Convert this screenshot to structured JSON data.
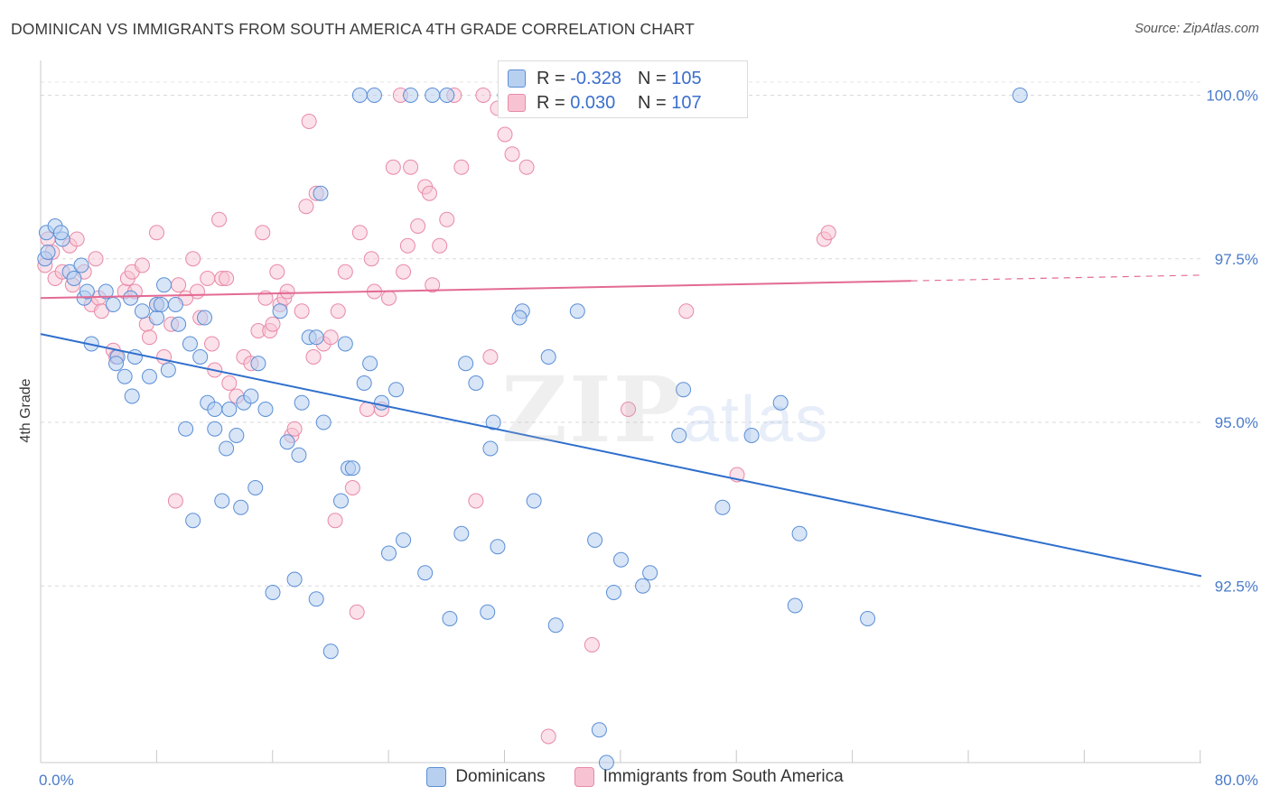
{
  "title": "DOMINICAN VS IMMIGRANTS FROM SOUTH AMERICA 4TH GRADE CORRELATION CHART",
  "source": "Source: ZipAtlas.com",
  "watermark": {
    "zip": "ZIP",
    "atlas": "atlas"
  },
  "legend": {
    "blue": {
      "r_label": "R = ",
      "r_value": "-0.328",
      "n_label": "N = ",
      "n_value": "105"
    },
    "pink": {
      "r_label": "R = ",
      "r_value": "0.030",
      "n_label": "N = ",
      "n_value": "107"
    }
  },
  "bottom_legend": [
    "Dominicans",
    "Immigrants from South America"
  ],
  "colors": {
    "blue": "#5b8fd6",
    "blue_fill": "#b8d0f0",
    "blue_line": "#2f6fcc",
    "pink": "#e88aa8",
    "pink_fill": "#f7c3d3",
    "pink_line": "#e36a93",
    "tick_text": "#4a7bc8"
  },
  "chart_data": {
    "type": "scatter",
    "xlabel": "",
    "ylabel": "4th Grade",
    "xlim": [
      0,
      80
    ],
    "ylim": [
      89.8,
      100.6
    ],
    "x_tick_labels": [
      {
        "value": 0,
        "label": "0.0%"
      },
      {
        "value": 80,
        "label": "80.0%"
      }
    ],
    "y_ticks": [
      {
        "value": 92.5,
        "label": "92.5%"
      },
      {
        "value": 95.0,
        "label": "95.0%"
      },
      {
        "value": 97.5,
        "label": "97.5%"
      },
      {
        "value": 100.0,
        "label": "100.0%"
      }
    ],
    "x_minor_ticks": [
      8,
      16,
      24,
      32,
      40,
      48,
      56,
      64,
      72,
      80
    ],
    "grid": true,
    "series": [
      {
        "name": "Dominicans",
        "color": "#5b8fd6",
        "trend": {
          "x": [
            0,
            80
          ],
          "y": [
            96.35,
            92.65
          ],
          "dashed_from": null
        },
        "points": [
          [
            0.3,
            97.5
          ],
          [
            0.4,
            97.9
          ],
          [
            0.5,
            97.6
          ],
          [
            1.0,
            98.0
          ],
          [
            1.5,
            97.8
          ],
          [
            1.4,
            97.9
          ],
          [
            2.0,
            97.3
          ],
          [
            2.3,
            97.2
          ],
          [
            3.0,
            96.9
          ],
          [
            2.8,
            97.4
          ],
          [
            3.5,
            96.2
          ],
          [
            3.2,
            97.0
          ],
          [
            4.5,
            97.0
          ],
          [
            5.0,
            96.8
          ],
          [
            5.3,
            96.0
          ],
          [
            5.2,
            95.9
          ],
          [
            5.8,
            95.7
          ],
          [
            6.2,
            96.9
          ],
          [
            6.5,
            96.0
          ],
          [
            6.3,
            95.4
          ],
          [
            7.0,
            96.7
          ],
          [
            7.5,
            95.7
          ],
          [
            8.0,
            96.6
          ],
          [
            8.0,
            96.8
          ],
          [
            8.3,
            96.8
          ],
          [
            8.5,
            97.1
          ],
          [
            8.8,
            95.8
          ],
          [
            9.3,
            96.8
          ],
          [
            9.5,
            96.5
          ],
          [
            10.0,
            94.9
          ],
          [
            10.3,
            96.2
          ],
          [
            10.5,
            93.5
          ],
          [
            11.0,
            96.0
          ],
          [
            11.3,
            96.6
          ],
          [
            11.5,
            95.3
          ],
          [
            12.0,
            95.2
          ],
          [
            12.0,
            94.9
          ],
          [
            12.5,
            93.8
          ],
          [
            12.8,
            94.6
          ],
          [
            13.0,
            95.2
          ],
          [
            13.5,
            94.8
          ],
          [
            13.8,
            93.7
          ],
          [
            14.0,
            95.3
          ],
          [
            14.5,
            95.4
          ],
          [
            14.8,
            94.0
          ],
          [
            15.0,
            95.9
          ],
          [
            15.5,
            95.2
          ],
          [
            16.0,
            92.4
          ],
          [
            16.5,
            96.7
          ],
          [
            17.0,
            94.7
          ],
          [
            17.5,
            92.6
          ],
          [
            17.8,
            94.5
          ],
          [
            18.0,
            95.3
          ],
          [
            18.5,
            96.3
          ],
          [
            19.0,
            96.3
          ],
          [
            19.0,
            92.3
          ],
          [
            19.3,
            98.5
          ],
          [
            19.5,
            95.0
          ],
          [
            20.0,
            91.5
          ],
          [
            20.7,
            93.8
          ],
          [
            21.0,
            96.2
          ],
          [
            21.2,
            94.3
          ],
          [
            21.5,
            94.3
          ],
          [
            22.0,
            100.0
          ],
          [
            22.3,
            95.6
          ],
          [
            22.7,
            95.9
          ],
          [
            23.0,
            100.0
          ],
          [
            23.5,
            95.3
          ],
          [
            24.0,
            93.0
          ],
          [
            24.5,
            95.5
          ],
          [
            25.0,
            93.2
          ],
          [
            25.5,
            100.0
          ],
          [
            26.5,
            92.7
          ],
          [
            27.0,
            100.0
          ],
          [
            28.0,
            100.0
          ],
          [
            28.2,
            92.0
          ],
          [
            29.0,
            93.3
          ],
          [
            29.3,
            95.9
          ],
          [
            30.0,
            95.6
          ],
          [
            30.8,
            92.1
          ],
          [
            31.0,
            94.6
          ],
          [
            31.2,
            95.0
          ],
          [
            31.5,
            93.1
          ],
          [
            32.0,
            100.0
          ],
          [
            33.2,
            96.7
          ],
          [
            33.0,
            96.6
          ],
          [
            34.0,
            93.8
          ],
          [
            35.0,
            96.0
          ],
          [
            35.5,
            91.9
          ],
          [
            37.0,
            96.7
          ],
          [
            38.2,
            93.2
          ],
          [
            38.5,
            90.3
          ],
          [
            39.0,
            89.8
          ],
          [
            39.5,
            92.4
          ],
          [
            40.0,
            92.9
          ],
          [
            41.5,
            92.5
          ],
          [
            42.0,
            92.7
          ],
          [
            44.3,
            95.5
          ],
          [
            44.0,
            94.8
          ],
          [
            47.0,
            93.7
          ],
          [
            49.0,
            94.8
          ],
          [
            51.0,
            95.3
          ],
          [
            52.0,
            92.2
          ],
          [
            52.3,
            93.3
          ],
          [
            57.0,
            92.0
          ],
          [
            67.5,
            100.0
          ]
        ]
      },
      {
        "name": "Immigrants from South America",
        "color": "#e88aa8",
        "trend": {
          "x": [
            0,
            80
          ],
          "y": [
            96.9,
            97.25
          ],
          "dashed_from": 60
        },
        "points": [
          [
            0.3,
            97.4
          ],
          [
            0.5,
            97.8
          ],
          [
            0.8,
            97.6
          ],
          [
            1.0,
            97.2
          ],
          [
            1.5,
            97.3
          ],
          [
            2.0,
            97.7
          ],
          [
            2.2,
            97.1
          ],
          [
            2.5,
            97.8
          ],
          [
            3.0,
            97.3
          ],
          [
            3.5,
            96.8
          ],
          [
            3.8,
            97.5
          ],
          [
            4.0,
            96.9
          ],
          [
            4.2,
            96.7
          ],
          [
            5.0,
            96.1
          ],
          [
            5.2,
            96.0
          ],
          [
            5.8,
            97.0
          ],
          [
            6.0,
            97.2
          ],
          [
            6.3,
            97.3
          ],
          [
            6.5,
            97.0
          ],
          [
            7.0,
            97.4
          ],
          [
            7.3,
            96.5
          ],
          [
            7.5,
            96.3
          ],
          [
            8.0,
            96.8
          ],
          [
            8.0,
            97.9
          ],
          [
            8.5,
            96.0
          ],
          [
            9.0,
            96.5
          ],
          [
            9.5,
            97.1
          ],
          [
            9.3,
            93.8
          ],
          [
            10.0,
            96.9
          ],
          [
            10.5,
            97.5
          ],
          [
            10.8,
            97.0
          ],
          [
            11.0,
            96.6
          ],
          [
            11.5,
            97.2
          ],
          [
            11.8,
            96.2
          ],
          [
            12.0,
            95.8
          ],
          [
            12.3,
            98.1
          ],
          [
            12.5,
            97.2
          ],
          [
            12.8,
            97.2
          ],
          [
            13.0,
            95.6
          ],
          [
            13.5,
            95.4
          ],
          [
            14.0,
            96.0
          ],
          [
            14.5,
            95.9
          ],
          [
            15.0,
            96.4
          ],
          [
            15.3,
            97.9
          ],
          [
            15.5,
            96.9
          ],
          [
            15.8,
            96.4
          ],
          [
            16.0,
            96.5
          ],
          [
            16.3,
            97.3
          ],
          [
            16.5,
            96.8
          ],
          [
            16.8,
            96.9
          ],
          [
            17.0,
            97.0
          ],
          [
            17.3,
            94.8
          ],
          [
            17.5,
            94.9
          ],
          [
            18.0,
            96.7
          ],
          [
            18.3,
            98.3
          ],
          [
            18.5,
            99.6
          ],
          [
            18.8,
            96.0
          ],
          [
            19.0,
            98.5
          ],
          [
            19.5,
            96.2
          ],
          [
            20.0,
            96.3
          ],
          [
            20.3,
            93.5
          ],
          [
            20.5,
            96.7
          ],
          [
            21.0,
            97.3
          ],
          [
            21.5,
            94.0
          ],
          [
            21.8,
            92.1
          ],
          [
            22.0,
            97.9
          ],
          [
            22.5,
            95.2
          ],
          [
            22.8,
            97.5
          ],
          [
            23.0,
            97.0
          ],
          [
            23.5,
            95.2
          ],
          [
            24.0,
            96.9
          ],
          [
            24.3,
            98.9
          ],
          [
            24.8,
            100.0
          ],
          [
            25.0,
            97.3
          ],
          [
            25.3,
            97.7
          ],
          [
            25.5,
            98.9
          ],
          [
            26.0,
            98.0
          ],
          [
            26.5,
            98.6
          ],
          [
            26.8,
            98.5
          ],
          [
            27.0,
            97.1
          ],
          [
            27.5,
            97.7
          ],
          [
            28.0,
            98.1
          ],
          [
            28.5,
            100.0
          ],
          [
            29.0,
            98.9
          ],
          [
            30.0,
            93.8
          ],
          [
            30.5,
            100.0
          ],
          [
            31.0,
            96.0
          ],
          [
            31.5,
            99.8
          ],
          [
            32.0,
            99.4
          ],
          [
            32.5,
            99.1
          ],
          [
            33.5,
            98.9
          ],
          [
            35.0,
            90.2
          ],
          [
            36.0,
            100.0
          ],
          [
            38.0,
            91.6
          ],
          [
            40.5,
            95.2
          ],
          [
            44.5,
            96.7
          ],
          [
            48.0,
            94.2
          ],
          [
            54.0,
            97.8
          ],
          [
            54.3,
            97.9
          ]
        ]
      }
    ]
  }
}
